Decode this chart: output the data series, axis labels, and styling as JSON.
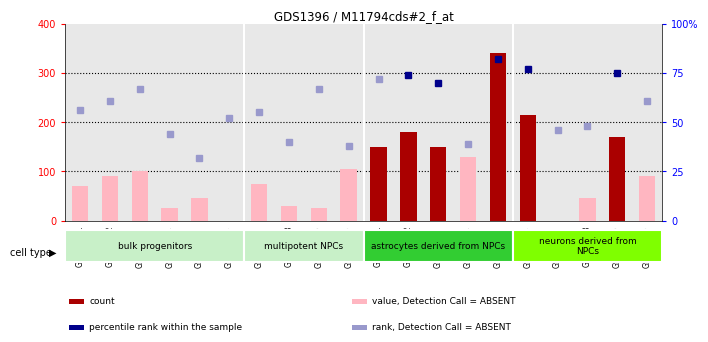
{
  "title": "GDS1396 / M11794cds#2_f_at",
  "samples": [
    "GSM47541",
    "GSM47542",
    "GSM47543",
    "GSM47544",
    "GSM47545",
    "GSM47546",
    "GSM47547",
    "GSM47548",
    "GSM47549",
    "GSM47550",
    "GSM47551",
    "GSM47552",
    "GSM47553",
    "GSM47554",
    "GSM47555",
    "GSM47556",
    "GSM47557",
    "GSM47558",
    "GSM47559",
    "GSM47560"
  ],
  "count_present": [
    null,
    null,
    null,
    null,
    null,
    null,
    null,
    null,
    null,
    null,
    150,
    180,
    150,
    null,
    340,
    215,
    null,
    null,
    170,
    null
  ],
  "count_absent": [
    70,
    90,
    100,
    25,
    45,
    null,
    75,
    30,
    25,
    105,
    null,
    null,
    null,
    130,
    null,
    null,
    null,
    45,
    null,
    90
  ],
  "rank_present_val": [
    null,
    null,
    null,
    null,
    null,
    null,
    null,
    null,
    null,
    null,
    null,
    74,
    70,
    null,
    82,
    77,
    null,
    null,
    75,
    null
  ],
  "rank_absent_val": [
    56,
    61,
    67,
    44,
    32,
    52,
    55,
    40,
    67,
    38,
    72,
    null,
    null,
    39,
    null,
    null,
    46,
    48,
    null,
    61
  ],
  "cell_groups": [
    {
      "label": "bulk progenitors",
      "start": 0,
      "end": 6,
      "color": "#c8f0c8"
    },
    {
      "label": "multipotent NPCs",
      "start": 6,
      "end": 10,
      "color": "#c8f0c8"
    },
    {
      "label": "astrocytes derived from NPCs",
      "start": 10,
      "end": 15,
      "color": "#32cd32"
    },
    {
      "label": "neurons derived from\nNPCs",
      "start": 15,
      "end": 20,
      "color": "#7fff00"
    }
  ],
  "ylim_left": [
    0,
    400
  ],
  "ylim_right": [
    0,
    100
  ],
  "yticks_left": [
    0,
    100,
    200,
    300,
    400
  ],
  "yticks_right": [
    0,
    25,
    50,
    75,
    100
  ],
  "ytick_right_labels": [
    "0",
    "25",
    "50",
    "75",
    "100%"
  ],
  "color_count_present": "#aa0000",
  "color_count_absent": "#ffb6c1",
  "color_rank_present": "#00008b",
  "color_rank_absent": "#9999cc",
  "bg_color": "#e8e8e8",
  "cell_type_label": "cell type",
  "legend_items": [
    {
      "color": "#aa0000",
      "label": "count"
    },
    {
      "color": "#00008b",
      "label": "percentile rank within the sample"
    },
    {
      "color": "#ffb6c1",
      "label": "value, Detection Call = ABSENT"
    },
    {
      "color": "#9999cc",
      "label": "rank, Detection Call = ABSENT"
    }
  ],
  "group_fill_colors": [
    "#c8f0c8",
    "#c8f0c8",
    "#32cd32",
    "#7fff00"
  ]
}
